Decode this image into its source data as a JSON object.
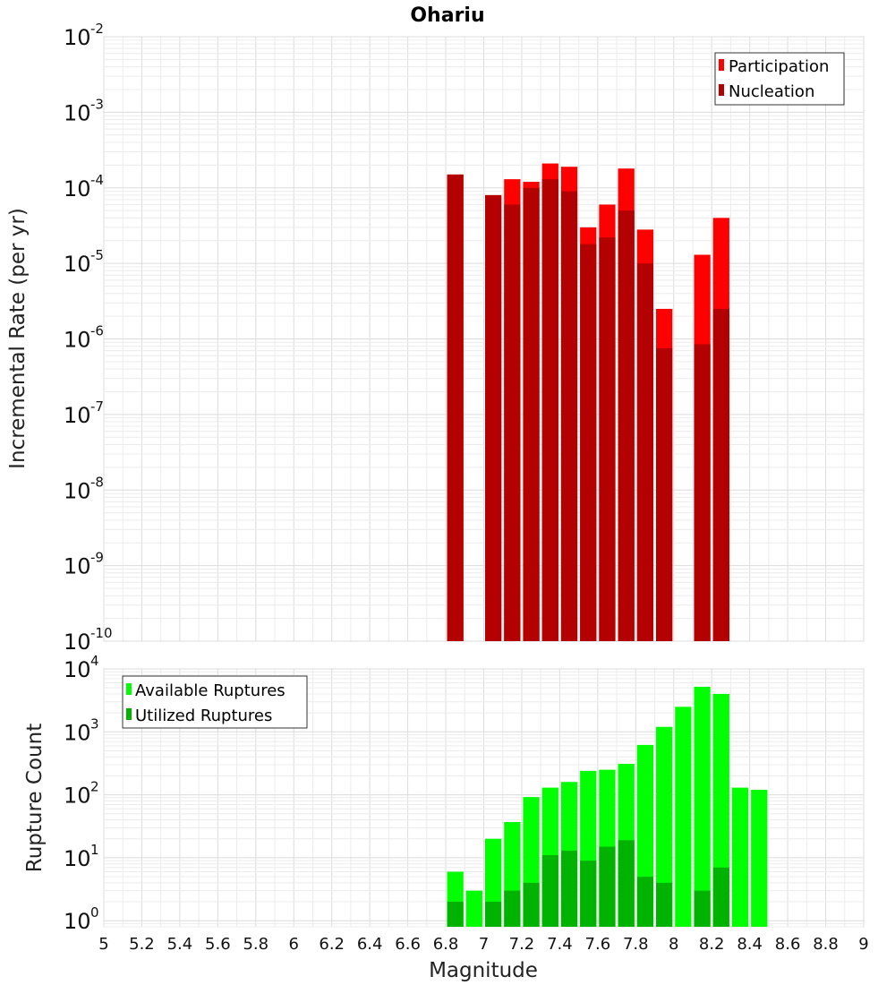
{
  "chart_data": [
    {
      "type": "bar",
      "title": "Ohariu",
      "xlabel": "",
      "ylabel": "Incremental Rate (per yr)",
      "yscale": "log",
      "ylim": [
        1e-10,
        0.01
      ],
      "xlim": [
        5,
        9
      ],
      "bin_width": 0.1,
      "grid": true,
      "legend_position": "top-right",
      "x": [
        6.85,
        7.05,
        7.15,
        7.25,
        7.35,
        7.45,
        7.55,
        7.65,
        7.75,
        7.85,
        7.95,
        8.15,
        8.25
      ],
      "series": [
        {
          "name": "Participation",
          "color": "#ff0000",
          "values": [
            0.00015,
            8e-05,
            0.00013,
            0.00012,
            0.00021,
            0.00019,
            3e-05,
            6e-05,
            0.00018,
            2.8e-05,
            2.5e-06,
            1.3e-05,
            4e-05
          ]
        },
        {
          "name": "Nucleation",
          "color": "#b30000",
          "values": [
            0.00015,
            8e-05,
            6e-05,
            0.0001,
            0.00013,
            9e-05,
            1.8e-05,
            2.2e-05,
            5e-05,
            1e-05,
            7.5e-07,
            8.5e-07,
            2.5e-06
          ]
        }
      ]
    },
    {
      "type": "bar",
      "title": "",
      "xlabel": "Magnitude",
      "ylabel": "Rupture Count",
      "yscale": "log",
      "ylim": [
        0.8,
        10000
      ],
      "xlim": [
        5,
        9
      ],
      "bin_width": 0.1,
      "grid": true,
      "legend_position": "top-left",
      "x": [
        6.85,
        6.95,
        7.05,
        7.15,
        7.25,
        7.35,
        7.45,
        7.55,
        7.65,
        7.75,
        7.85,
        7.95,
        8.05,
        8.15,
        8.25,
        8.35,
        8.45
      ],
      "series": [
        {
          "name": "Available Ruptures",
          "color": "#00ff00",
          "values": [
            6,
            3,
            20,
            37,
            92,
            130,
            160,
            240,
            250,
            310,
            620,
            1200,
            2500,
            5200,
            4000,
            130,
            120
          ]
        },
        {
          "name": "Utilized Ruptures",
          "color": "#00b300",
          "values": [
            2,
            0,
            2,
            3,
            4,
            11,
            13,
            9,
            15,
            19,
            5,
            4,
            0,
            3,
            7,
            0,
            0
          ]
        }
      ]
    }
  ],
  "axes": {
    "top_yticks": [
      {
        "base": "10",
        "exp": "-2",
        "value": 0.01
      },
      {
        "base": "10",
        "exp": "-3",
        "value": 0.001
      },
      {
        "base": "10",
        "exp": "-4",
        "value": 0.0001
      },
      {
        "base": "10",
        "exp": "-5",
        "value": 1e-05
      },
      {
        "base": "10",
        "exp": "-6",
        "value": 1e-06
      },
      {
        "base": "10",
        "exp": "-7",
        "value": 1e-07
      },
      {
        "base": "10",
        "exp": "-8",
        "value": 1e-08
      },
      {
        "base": "10",
        "exp": "-9",
        "value": 1e-09
      },
      {
        "base": "10",
        "exp": "-10",
        "value": 1e-10
      }
    ],
    "bottom_yticks": [
      {
        "base": "10",
        "exp": "4",
        "value": 10000
      },
      {
        "base": "10",
        "exp": "3",
        "value": 1000
      },
      {
        "base": "10",
        "exp": "2",
        "value": 100
      },
      {
        "base": "10",
        "exp": "1",
        "value": 10
      },
      {
        "base": "10",
        "exp": "0",
        "value": 1
      }
    ],
    "xticks": [
      "5",
      "5.2",
      "5.4",
      "5.6",
      "5.8",
      "6",
      "6.2",
      "6.4",
      "6.6",
      "6.8",
      "7",
      "7.2",
      "7.4",
      "7.6",
      "7.8",
      "8",
      "8.2",
      "8.4",
      "8.6",
      "8.8",
      "9"
    ]
  }
}
